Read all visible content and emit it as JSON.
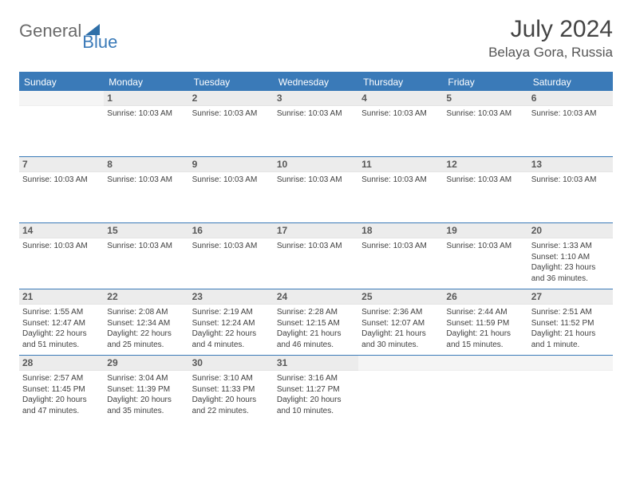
{
  "logo": {
    "part1": "General",
    "part2": "Blue"
  },
  "title": "July 2024",
  "location": "Belaya Gora, Russia",
  "dayHeaders": [
    "Sunday",
    "Monday",
    "Tuesday",
    "Wednesday",
    "Thursday",
    "Friday",
    "Saturday"
  ],
  "colors": {
    "accent": "#3a7ab8",
    "headerText": "#ffffff",
    "dayNumBg": "#ececec",
    "body": "#444444"
  },
  "weeks": [
    [
      {
        "num": "",
        "lines": []
      },
      {
        "num": "1",
        "lines": [
          "Sunrise: 10:03 AM"
        ]
      },
      {
        "num": "2",
        "lines": [
          "Sunrise: 10:03 AM"
        ]
      },
      {
        "num": "3",
        "lines": [
          "Sunrise: 10:03 AM"
        ]
      },
      {
        "num": "4",
        "lines": [
          "Sunrise: 10:03 AM"
        ]
      },
      {
        "num": "5",
        "lines": [
          "Sunrise: 10:03 AM"
        ]
      },
      {
        "num": "6",
        "lines": [
          "Sunrise: 10:03 AM"
        ]
      }
    ],
    [
      {
        "num": "7",
        "lines": [
          "Sunrise: 10:03 AM"
        ]
      },
      {
        "num": "8",
        "lines": [
          "Sunrise: 10:03 AM"
        ]
      },
      {
        "num": "9",
        "lines": [
          "Sunrise: 10:03 AM"
        ]
      },
      {
        "num": "10",
        "lines": [
          "Sunrise: 10:03 AM"
        ]
      },
      {
        "num": "11",
        "lines": [
          "Sunrise: 10:03 AM"
        ]
      },
      {
        "num": "12",
        "lines": [
          "Sunrise: 10:03 AM"
        ]
      },
      {
        "num": "13",
        "lines": [
          "Sunrise: 10:03 AM"
        ]
      }
    ],
    [
      {
        "num": "14",
        "lines": [
          "Sunrise: 10:03 AM"
        ]
      },
      {
        "num": "15",
        "lines": [
          "Sunrise: 10:03 AM"
        ]
      },
      {
        "num": "16",
        "lines": [
          "Sunrise: 10:03 AM"
        ]
      },
      {
        "num": "17",
        "lines": [
          "Sunrise: 10:03 AM"
        ]
      },
      {
        "num": "18",
        "lines": [
          "Sunrise: 10:03 AM"
        ]
      },
      {
        "num": "19",
        "lines": [
          "Sunrise: 10:03 AM"
        ]
      },
      {
        "num": "20",
        "lines": [
          "Sunrise: 1:33 AM",
          "Sunset: 1:10 AM",
          "Daylight: 23 hours",
          "and 36 minutes."
        ]
      }
    ],
    [
      {
        "num": "21",
        "lines": [
          "Sunrise: 1:55 AM",
          "Sunset: 12:47 AM",
          "Daylight: 22 hours",
          "and 51 minutes."
        ]
      },
      {
        "num": "22",
        "lines": [
          "Sunrise: 2:08 AM",
          "Sunset: 12:34 AM",
          "Daylight: 22 hours",
          "and 25 minutes."
        ]
      },
      {
        "num": "23",
        "lines": [
          "Sunrise: 2:19 AM",
          "Sunset: 12:24 AM",
          "Daylight: 22 hours",
          "and 4 minutes."
        ]
      },
      {
        "num": "24",
        "lines": [
          "Sunrise: 2:28 AM",
          "Sunset: 12:15 AM",
          "Daylight: 21 hours",
          "and 46 minutes."
        ]
      },
      {
        "num": "25",
        "lines": [
          "Sunrise: 2:36 AM",
          "Sunset: 12:07 AM",
          "Daylight: 21 hours",
          "and 30 minutes."
        ]
      },
      {
        "num": "26",
        "lines": [
          "Sunrise: 2:44 AM",
          "Sunset: 11:59 PM",
          "Daylight: 21 hours",
          "and 15 minutes."
        ]
      },
      {
        "num": "27",
        "lines": [
          "Sunrise: 2:51 AM",
          "Sunset: 11:52 PM",
          "Daylight: 21 hours",
          "and 1 minute."
        ]
      }
    ],
    [
      {
        "num": "28",
        "lines": [
          "Sunrise: 2:57 AM",
          "Sunset: 11:45 PM",
          "Daylight: 20 hours",
          "and 47 minutes."
        ]
      },
      {
        "num": "29",
        "lines": [
          "Sunrise: 3:04 AM",
          "Sunset: 11:39 PM",
          "Daylight: 20 hours",
          "and 35 minutes."
        ]
      },
      {
        "num": "30",
        "lines": [
          "Sunrise: 3:10 AM",
          "Sunset: 11:33 PM",
          "Daylight: 20 hours",
          "and 22 minutes."
        ]
      },
      {
        "num": "31",
        "lines": [
          "Sunrise: 3:16 AM",
          "Sunset: 11:27 PM",
          "Daylight: 20 hours",
          "and 10 minutes."
        ]
      },
      {
        "num": "",
        "lines": []
      },
      {
        "num": "",
        "lines": []
      },
      {
        "num": "",
        "lines": []
      }
    ]
  ]
}
